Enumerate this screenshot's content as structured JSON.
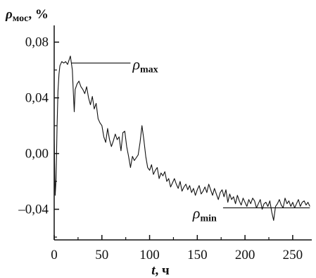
{
  "chart_data": {
    "type": "line",
    "ylabel": {
      "symbol": "ρ",
      "sub": "мос",
      "rest": ", %"
    },
    "xlabel": {
      "symbol": "t",
      "rest": ", ч"
    },
    "xlim": [
      0,
      270
    ],
    "ylim": [
      -0.062,
      0.092
    ],
    "x_ticks": [
      0,
      50,
      100,
      150,
      200,
      250
    ],
    "x_tick_labels": [
      "0",
      "50",
      "100",
      "150",
      "200",
      "250"
    ],
    "y_ticks": [
      -0.04,
      0.0,
      0.04,
      0.08
    ],
    "y_tick_labels": [
      "–0,04",
      "0,00",
      "0,04",
      "0,08"
    ],
    "annotations": [
      {
        "symbol": "ρ",
        "sub": "max",
        "y": 0.065,
        "x_from": 18,
        "x_to": 80
      },
      {
        "symbol": "ρ",
        "sub": "min",
        "y": -0.039,
        "x_from": 177,
        "x_to": 268
      }
    ],
    "series": [
      {
        "x": [
          0,
          1,
          2,
          3,
          4,
          5,
          6,
          8,
          10,
          12,
          14,
          16,
          17,
          18,
          19,
          20,
          21,
          22,
          24,
          26,
          28,
          30,
          32,
          34,
          36,
          38,
          40,
          42,
          44,
          46,
          48,
          50,
          52,
          54,
          56,
          58,
          60,
          62,
          64,
          66,
          68,
          70,
          72,
          74,
          76,
          78,
          80,
          82,
          84,
          86,
          88,
          90,
          92,
          94,
          96,
          98,
          100,
          102,
          104,
          106,
          108,
          110,
          112,
          114,
          116,
          118,
          120,
          122,
          124,
          126,
          128,
          130,
          132,
          134,
          136,
          138,
          140,
          142,
          144,
          146,
          148,
          150,
          152,
          154,
          156,
          158,
          160,
          162,
          164,
          166,
          168,
          170,
          172,
          174,
          176,
          178,
          180,
          182,
          184,
          186,
          188,
          190,
          192,
          194,
          196,
          198,
          200,
          202,
          204,
          206,
          208,
          210,
          212,
          214,
          216,
          218,
          220,
          222,
          224,
          226,
          228,
          230,
          232,
          234,
          236,
          238,
          240,
          242,
          244,
          246,
          248,
          250,
          252,
          254,
          256,
          258,
          260,
          262,
          264,
          266,
          268
        ],
        "y": [
          0.01,
          -0.03,
          -0.018,
          0.02,
          0.045,
          0.057,
          0.063,
          0.066,
          0.065,
          0.066,
          0.064,
          0.068,
          0.07,
          0.065,
          0.06,
          0.045,
          0.03,
          0.046,
          0.05,
          0.052,
          0.048,
          0.046,
          0.043,
          0.048,
          0.04,
          0.035,
          0.041,
          0.032,
          0.036,
          0.025,
          0.022,
          0.02,
          0.012,
          0.008,
          0.018,
          0.01,
          0.005,
          0.009,
          0.014,
          0.01,
          0.012,
          0.002,
          0.015,
          0.016,
          0.005,
          -0.002,
          -0.01,
          -0.002,
          -0.005,
          -0.003,
          -0.001,
          0.008,
          0.02,
          0.01,
          -0.002,
          -0.01,
          -0.012,
          -0.008,
          -0.015,
          -0.012,
          -0.01,
          -0.018,
          -0.014,
          -0.016,
          -0.013,
          -0.02,
          -0.018,
          -0.024,
          -0.021,
          -0.018,
          -0.022,
          -0.025,
          -0.02,
          -0.027,
          -0.024,
          -0.022,
          -0.026,
          -0.023,
          -0.028,
          -0.025,
          -0.03,
          -0.026,
          -0.023,
          -0.029,
          -0.027,
          -0.024,
          -0.028,
          -0.022,
          -0.026,
          -0.03,
          -0.025,
          -0.029,
          -0.033,
          -0.028,
          -0.026,
          -0.031,
          -0.026,
          -0.035,
          -0.029,
          -0.033,
          -0.031,
          -0.036,
          -0.03,
          -0.034,
          -0.037,
          -0.032,
          -0.035,
          -0.038,
          -0.033,
          -0.036,
          -0.032,
          -0.034,
          -0.039,
          -0.036,
          -0.033,
          -0.04,
          -0.036,
          -0.035,
          -0.038,
          -0.034,
          -0.042,
          -0.048,
          -0.038,
          -0.036,
          -0.033,
          -0.037,
          -0.039,
          -0.032,
          -0.036,
          -0.034,
          -0.038,
          -0.035,
          -0.039,
          -0.036,
          -0.033,
          -0.038,
          -0.035,
          -0.034,
          -0.037,
          -0.035,
          -0.038
        ]
      }
    ]
  }
}
